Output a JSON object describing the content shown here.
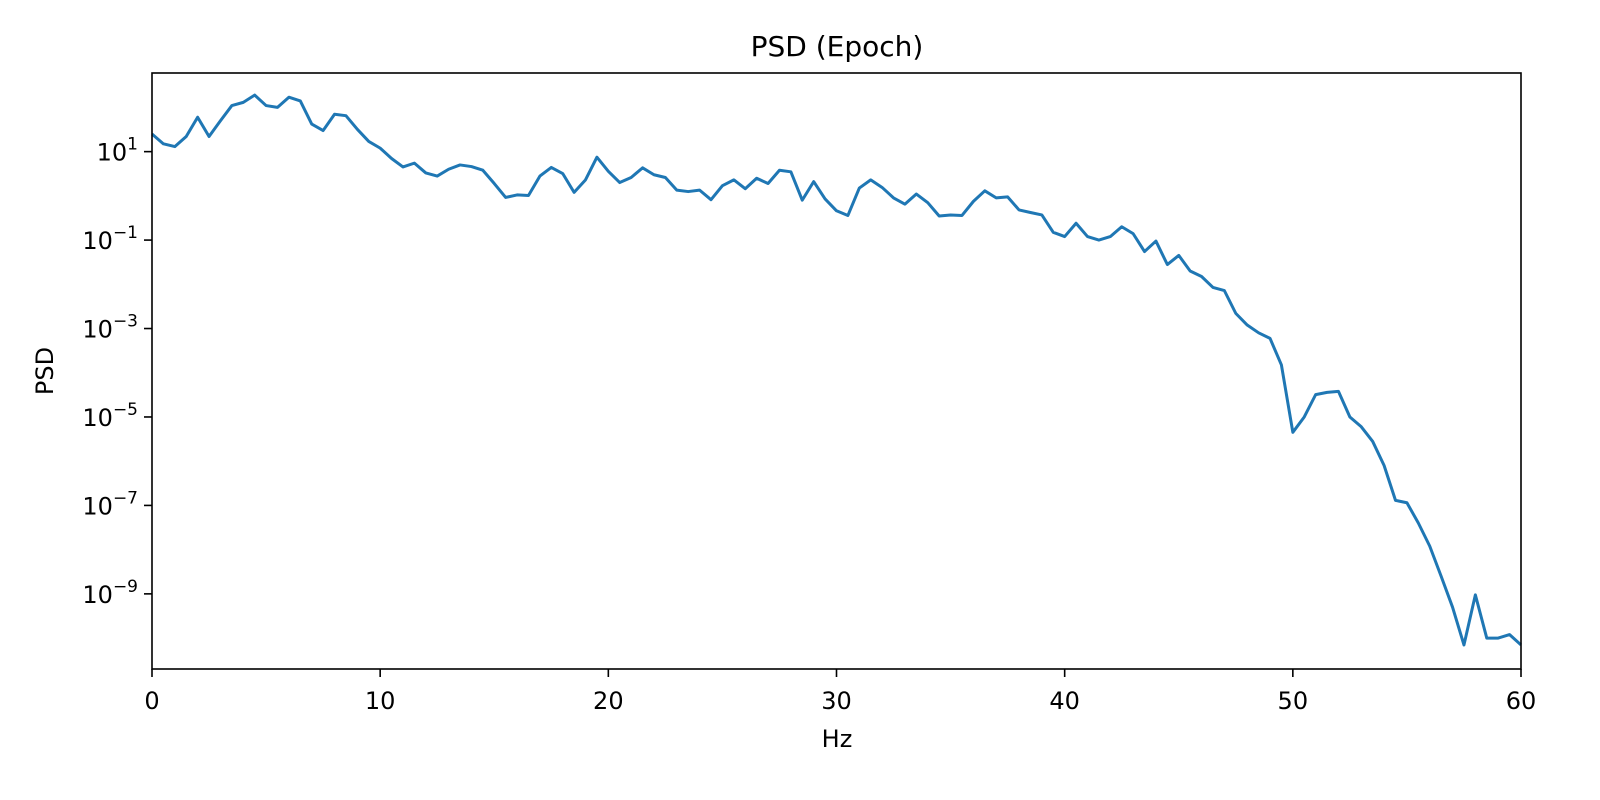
{
  "chart_data": {
    "type": "line",
    "title": "PSD (Epoch)",
    "xlabel": "Hz",
    "ylabel": "PSD",
    "xlim": [
      0,
      60
    ],
    "y_scale": "log",
    "ylim": [
      2e-11,
      600
    ],
    "grid": false,
    "x_ticks": [
      {
        "value": 0,
        "label": "0"
      },
      {
        "value": 10,
        "label": "10"
      },
      {
        "value": 20,
        "label": "20"
      },
      {
        "value": 30,
        "label": "30"
      },
      {
        "value": 40,
        "label": "40"
      },
      {
        "value": 50,
        "label": "50"
      },
      {
        "value": 60,
        "label": "60"
      }
    ],
    "y_ticks": [
      {
        "value": 10,
        "base": "10",
        "exp": "1"
      },
      {
        "value": 0.1,
        "base": "10",
        "exp": "−1"
      },
      {
        "value": 0.001,
        "base": "10",
        "exp": "−3"
      },
      {
        "value": 1e-05,
        "base": "10",
        "exp": "−5"
      },
      {
        "value": 1e-07,
        "base": "10",
        "exp": "−7"
      },
      {
        "value": 1e-09,
        "base": "10",
        "exp": "−9"
      }
    ],
    "series": [
      {
        "color": "#1f77b4",
        "x": [
          0,
          0.5,
          1,
          1.5,
          2,
          2.5,
          3,
          3.5,
          4,
          4.5,
          5,
          5.5,
          6,
          6.5,
          7,
          7.5,
          8,
          8.5,
          9,
          9.5,
          10,
          10.5,
          11,
          11.5,
          12,
          12.5,
          13,
          13.5,
          14,
          14.5,
          15,
          15.5,
          16,
          16.5,
          17,
          17.5,
          18,
          18.5,
          19,
          19.5,
          20,
          20.5,
          21,
          21.5,
          22,
          22.5,
          23,
          23.5,
          24,
          24.5,
          25,
          25.5,
          26,
          26.5,
          27,
          27.5,
          28,
          28.5,
          29,
          29.5,
          30,
          30.5,
          31,
          31.5,
          32,
          32.5,
          33,
          33.5,
          34,
          34.5,
          35,
          35.5,
          36,
          36.5,
          37,
          37.5,
          38,
          38.5,
          39,
          39.5,
          40,
          40.5,
          41,
          41.5,
          42,
          42.5,
          43,
          43.5,
          44,
          44.5,
          45,
          45.5,
          46,
          46.5,
          47,
          47.5,
          48,
          48.5,
          49,
          49.5,
          50,
          50.5,
          51,
          51.5,
          52,
          52.5,
          53,
          53.5,
          54,
          54.5,
          55,
          55.5,
          56,
          56.5,
          57,
          57.5,
          58,
          58.5,
          59,
          59.5,
          60
        ],
        "y": [
          25,
          15,
          13,
          22,
          60,
          22,
          50,
          110,
          130,
          190,
          110,
          100,
          170,
          140,
          42,
          30,
          70,
          65,
          32,
          17,
          12,
          7,
          4.5,
          5.5,
          3.3,
          2.8,
          4,
          5,
          4.6,
          3.8,
          1.9,
          0.92,
          1.05,
          1.02,
          2.8,
          4.4,
          3.2,
          1.2,
          2.3,
          7.5,
          3.6,
          2,
          2.6,
          4.3,
          3,
          2.6,
          1.35,
          1.25,
          1.35,
          0.82,
          1.7,
          2.3,
          1.45,
          2.5,
          1.9,
          3.8,
          3.5,
          0.8,
          2.1,
          0.85,
          0.46,
          0.36,
          1.5,
          2.3,
          1.55,
          0.9,
          0.65,
          1.1,
          0.7,
          0.35,
          0.37,
          0.36,
          0.75,
          1.3,
          0.9,
          0.95,
          0.48,
          0.42,
          0.37,
          0.15,
          0.12,
          0.24,
          0.12,
          0.1,
          0.12,
          0.2,
          0.14,
          0.055,
          0.095,
          0.028,
          0.045,
          0.02,
          0.015,
          0.0085,
          0.0072,
          0.0022,
          0.0012,
          0.0008,
          0.0006,
          0.00015,
          4.5e-06,
          1e-05,
          3.2e-05,
          3.6e-05,
          3.8e-05,
          1e-05,
          6e-06,
          2.8e-06,
          8e-07,
          1.3e-07,
          1.15e-07,
          4e-08,
          1.2e-08,
          2.5e-09,
          5e-10,
          7e-11,
          9.5e-10,
          1e-10,
          1e-10,
          1.2e-10,
          7e-11
        ]
      }
    ]
  }
}
